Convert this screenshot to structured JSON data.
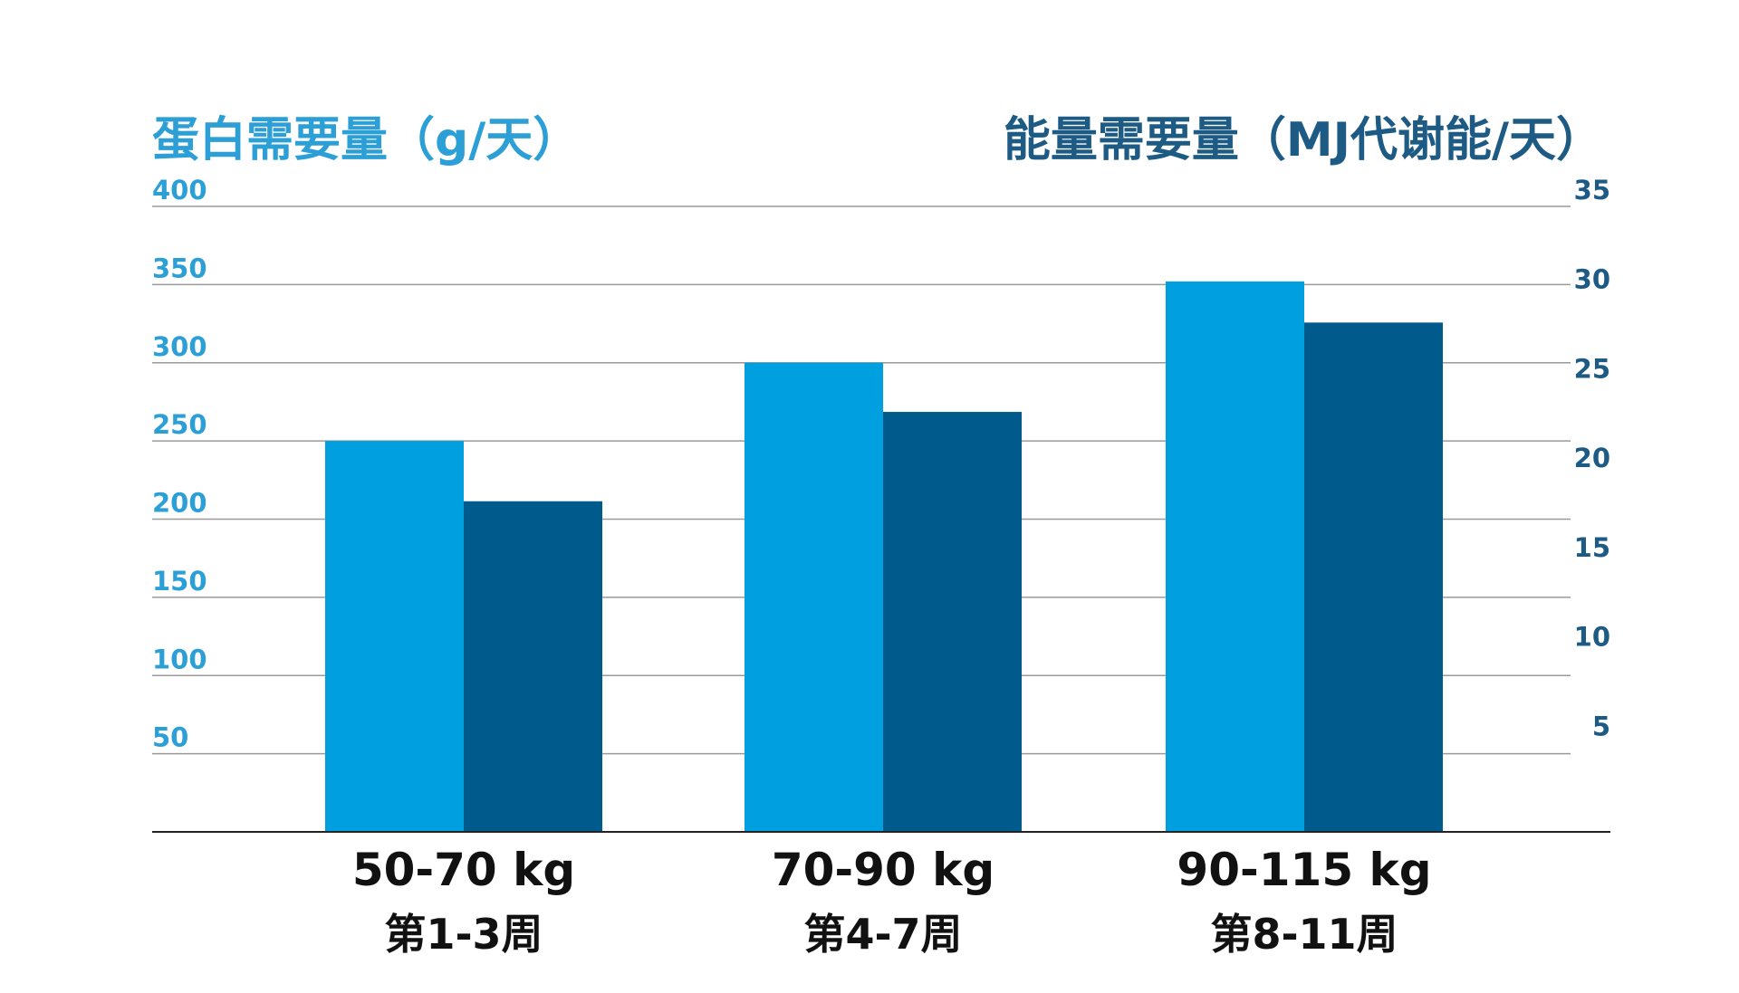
{
  "chart_data": {
    "type": "bar",
    "left_axis_title": "蛋白需要量（g/天）",
    "right_axis_title": "能量需要量（MJ代谢能/天）",
    "categories": [
      {
        "weight": "50-70 kg",
        "period": "第1-3周"
      },
      {
        "weight": "70-90 kg",
        "period": "第4-7周"
      },
      {
        "weight": "90-115 kg",
        "period": "第8-11周"
      }
    ],
    "series": [
      {
        "axis": "left",
        "color": "#009fdf",
        "values": [
          250,
          300,
          352
        ]
      },
      {
        "axis": "right",
        "color": "#005b8c",
        "values": [
          18.5,
          23.5,
          28.5
        ]
      }
    ],
    "left_axis": {
      "ylim": [
        0,
        400
      ],
      "ticks": [
        "50",
        "100",
        "150",
        "200",
        "250",
        "300",
        "350",
        "400"
      ],
      "tick_values": [
        50,
        100,
        150,
        200,
        250,
        300,
        350,
        400
      ],
      "color": "#2b9fd6"
    },
    "right_axis": {
      "ylim": [
        0,
        35
      ],
      "ticks": [
        "5",
        "10",
        "15",
        "20",
        "25",
        "30",
        "35"
      ],
      "tick_values": [
        5,
        10,
        15,
        20,
        25,
        30,
        35
      ],
      "color": "#1d5b85"
    },
    "grid": true,
    "legend": "none"
  }
}
